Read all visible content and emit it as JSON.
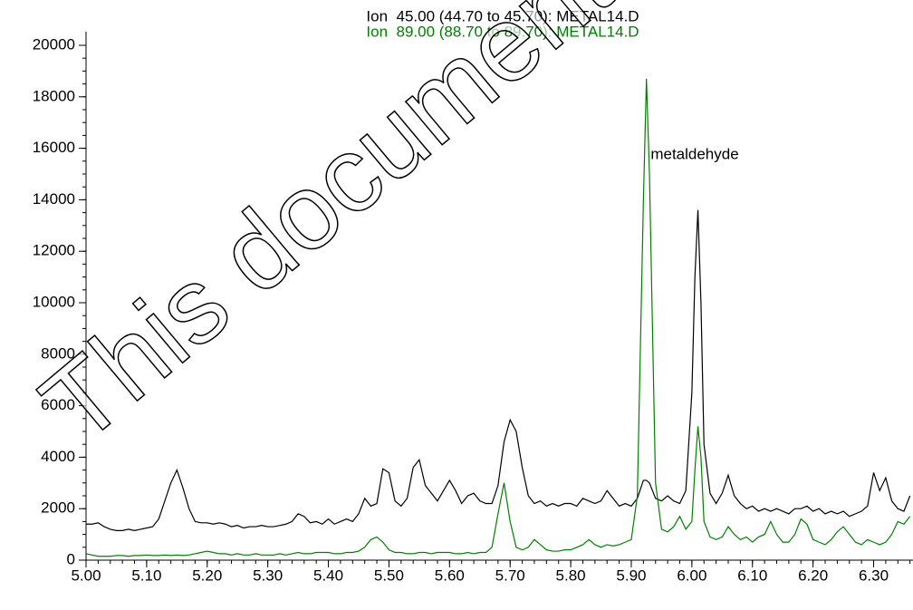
{
  "chart_data": {
    "type": "line",
    "series": [
      {
        "name": "Ion  45.00 (44.70 to 45.70): METAL14.D",
        "color": "#000000",
        "values": [
          1400,
          1400,
          1450,
          1300,
          1200,
          1150,
          1150,
          1200,
          1150,
          1200,
          1250,
          1300,
          1600,
          2300,
          3000,
          3500,
          2800,
          2000,
          1500,
          1450,
          1450,
          1400,
          1450,
          1400,
          1300,
          1350,
          1250,
          1300,
          1300,
          1350,
          1300,
          1300,
          1350,
          1400,
          1500,
          1800,
          1700,
          1450,
          1500,
          1400,
          1600,
          1400,
          1500,
          1600,
          1500,
          1800,
          2400,
          2100,
          2200,
          3550,
          3400,
          2300,
          2100,
          2400,
          3600,
          3900,
          2900,
          2600,
          2300,
          2700,
          3100,
          2700,
          2200,
          2500,
          2600,
          2300,
          2200,
          2200,
          2900,
          4600,
          5450,
          5000,
          3600,
          2500,
          2200,
          2300,
          2100,
          2200,
          2100,
          2200,
          2200,
          2100,
          2400,
          2300,
          2200,
          2300,
          2700,
          2400,
          2100,
          2200,
          2100,
          2400,
          3100,
          3100,
          3000,
          2400,
          2300,
          2500,
          2300,
          2200,
          2700,
          6500,
          11000,
          13600,
          10000,
          4500,
          2600,
          2200,
          2600,
          3300,
          2500,
          2200,
          2000,
          2100,
          1900,
          2000,
          1900,
          2000,
          1900,
          1800,
          2000,
          2000,
          2100,
          1900,
          2000,
          1800,
          1900,
          1800,
          1900,
          1700,
          1800,
          1900,
          2100,
          3400,
          2700,
          3200,
          2300,
          2000,
          1900,
          2500
        ]
      },
      {
        "name": "Ion  89.00 (88.70 to 89.70): METAL14.D",
        "color": "#008000",
        "values": [
          250,
          200,
          150,
          150,
          150,
          180,
          180,
          150,
          180,
          180,
          200,
          180,
          180,
          200,
          180,
          200,
          180,
          200,
          250,
          300,
          350,
          300,
          250,
          250,
          200,
          250,
          200,
          200,
          250,
          200,
          200,
          200,
          250,
          200,
          250,
          300,
          250,
          250,
          300,
          300,
          300,
          250,
          250,
          300,
          300,
          350,
          500,
          800,
          900,
          700,
          400,
          300,
          300,
          250,
          250,
          300,
          300,
          250,
          300,
          300,
          300,
          250,
          250,
          300,
          250,
          300,
          300,
          500,
          1800,
          3000,
          1500,
          500,
          400,
          500,
          800,
          600,
          400,
          350,
          350,
          400,
          400,
          500,
          600,
          800,
          600,
          500,
          600,
          550,
          600,
          700,
          800,
          2500,
          14000,
          18700,
          15000,
          3000,
          1200,
          1100,
          1300,
          1700,
          1200,
          1500,
          3500,
          5200,
          4000,
          1500,
          900,
          800,
          900,
          1300,
          1000,
          800,
          900,
          700,
          900,
          1000,
          1500,
          1000,
          700,
          700,
          1000,
          1600,
          1400,
          800,
          700,
          600,
          800,
          1100,
          1300,
          1000,
          700,
          600,
          800,
          700,
          600,
          700,
          1000,
          1500,
          1400,
          1700
        ]
      }
    ],
    "x": [
      5.0,
      5.01,
      5.02,
      5.03,
      5.04,
      5.05,
      5.06,
      5.07,
      5.08,
      5.09,
      5.1,
      5.11,
      5.12,
      5.13,
      5.14,
      5.15,
      5.16,
      5.17,
      5.18,
      5.19,
      5.2,
      5.21,
      5.22,
      5.23,
      5.24,
      5.25,
      5.26,
      5.27,
      5.28,
      5.29,
      5.3,
      5.31,
      5.32,
      5.33,
      5.34,
      5.35,
      5.36,
      5.37,
      5.38,
      5.39,
      5.4,
      5.41,
      5.42,
      5.43,
      5.44,
      5.45,
      5.46,
      5.47,
      5.48,
      5.49,
      5.5,
      5.51,
      5.52,
      5.53,
      5.54,
      5.55,
      5.56,
      5.57,
      5.58,
      5.59,
      5.6,
      5.61,
      5.62,
      5.63,
      5.64,
      5.65,
      5.66,
      5.67,
      5.68,
      5.69,
      5.7,
      5.71,
      5.72,
      5.73,
      5.74,
      5.75,
      5.76,
      5.77,
      5.78,
      5.79,
      5.8,
      5.81,
      5.82,
      5.83,
      5.84,
      5.85,
      5.86,
      5.87,
      5.88,
      5.89,
      5.9,
      5.91,
      5.92,
      5.925,
      5.93,
      5.94,
      5.95,
      5.96,
      5.97,
      5.98,
      5.99,
      6.0,
      6.005,
      6.01,
      6.015,
      6.02,
      6.03,
      6.04,
      6.05,
      6.06,
      6.07,
      6.08,
      6.09,
      6.1,
      6.11,
      6.12,
      6.13,
      6.14,
      6.15,
      6.16,
      6.17,
      6.18,
      6.19,
      6.2,
      6.21,
      6.22,
      6.23,
      6.24,
      6.25,
      6.26,
      6.27,
      6.28,
      6.29,
      6.3,
      6.31,
      6.32,
      6.33,
      6.34,
      6.35,
      6.36
    ],
    "xlim": [
      5.0,
      6.365
    ],
    "ylim": [
      0,
      20000
    ],
    "xticks": [
      {
        "value": 5.0,
        "label": "5.00"
      },
      {
        "value": 5.1,
        "label": "5.10"
      },
      {
        "value": 5.2,
        "label": "5.20"
      },
      {
        "value": 5.3,
        "label": "5.30"
      },
      {
        "value": 5.4,
        "label": "5.40"
      },
      {
        "value": 5.5,
        "label": "5.50"
      },
      {
        "value": 5.6,
        "label": "5.60"
      },
      {
        "value": 5.7,
        "label": "5.70"
      },
      {
        "value": 5.8,
        "label": "5.80"
      },
      {
        "value": 5.9,
        "label": "5.90"
      },
      {
        "value": 6.0,
        "label": "6.00"
      },
      {
        "value": 6.1,
        "label": "6.10"
      },
      {
        "value": 6.2,
        "label": "6.20"
      },
      {
        "value": 6.3,
        "label": "6.30"
      }
    ],
    "yticks": [
      0,
      2000,
      4000,
      6000,
      8000,
      10000,
      12000,
      14000,
      16000,
      18000,
      20000
    ],
    "annotation": "metaldehyde",
    "watermark": "This document was"
  }
}
